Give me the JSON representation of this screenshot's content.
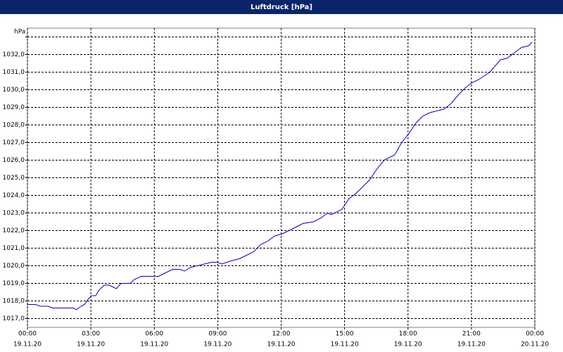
{
  "chart_data": {
    "type": "line",
    "title": "Luftdruck [hPa]",
    "y_label": "hPa",
    "color": "#0000cc",
    "grid": true,
    "x": [
      0,
      0.37,
      0.63,
      0.97,
      1.2,
      1.7,
      2.2,
      2.3,
      2.53,
      2.7,
      2.87,
      3.03,
      3.23,
      3.37,
      3.63,
      3.87,
      4.2,
      4.43,
      4.87,
      5.03,
      5.37,
      6.2,
      6.53,
      6.87,
      7.2,
      7.43,
      7.7,
      8.03,
      8.37,
      8.7,
      8.97,
      9.2,
      9.43,
      9.7,
      10.03,
      10.37,
      10.7,
      11.03,
      11.37,
      11.7,
      12.03,
      12.37,
      12.7,
      13.03,
      13.53,
      13.87,
      14.2,
      14.37,
      14.87,
      15.2,
      15.53,
      15.87,
      16.2,
      16.53,
      16.87,
      17.37,
      17.7,
      18.03,
      18.37,
      18.7,
      19.03,
      19.37,
      19.7,
      20.03,
      20.37,
      20.7,
      21.03,
      21.37,
      21.87,
      22.37,
      22.7,
      23.03,
      23.37,
      23.7,
      23.87
    ],
    "values": [
      1017.8,
      1017.8,
      1017.7,
      1017.7,
      1017.6,
      1017.6,
      1017.6,
      1017.5,
      1017.7,
      1017.8,
      1018.1,
      1018.3,
      1018.3,
      1018.6,
      1018.9,
      1018.9,
      1018.7,
      1019.0,
      1019.0,
      1019.2,
      1019.4,
      1019.4,
      1019.6,
      1019.8,
      1019.8,
      1019.7,
      1019.9,
      1020.0,
      1020.1,
      1020.2,
      1020.2,
      1020.1,
      1020.2,
      1020.3,
      1020.4,
      1020.6,
      1020.8,
      1021.2,
      1021.4,
      1021.7,
      1021.8,
      1022.0,
      1022.2,
      1022.4,
      1022.5,
      1022.7,
      1023.0,
      1022.9,
      1023.2,
      1023.8,
      1024.1,
      1024.5,
      1024.9,
      1025.5,
      1026.0,
      1026.3,
      1027.0,
      1027.5,
      1028.1,
      1028.5,
      1028.7,
      1028.8,
      1028.9,
      1029.2,
      1029.7,
      1030.1,
      1030.4,
      1030.6,
      1031.0,
      1031.7,
      1031.8,
      1032.1,
      1032.4,
      1032.5,
      1032.7
    ],
    "xlim": [
      0,
      24
    ],
    "xticks": [
      {
        "value": 0,
        "label": "00:00"
      },
      {
        "value": 3,
        "label": "03:00"
      },
      {
        "value": 6,
        "label": "06:00"
      },
      {
        "value": 9,
        "label": "09:00"
      },
      {
        "value": 12,
        "label": "12:00"
      },
      {
        "value": 15,
        "label": "15:00"
      },
      {
        "value": 18,
        "label": "18:00"
      },
      {
        "value": 21,
        "label": "21:00"
      },
      {
        "value": 24,
        "label": "00:00"
      }
    ],
    "xtick_dates": [
      "19.11.20",
      "19.11.20",
      "19.11.20",
      "19.11.20",
      "19.11.20",
      "19.11.20",
      "19.11.20",
      "19.11.20",
      "20.11.20"
    ],
    "ylim": [
      1016.5,
      1033.5
    ],
    "yticks": [
      {
        "value": 1017,
        "label": "1017,0"
      },
      {
        "value": 1018,
        "label": "1018,0"
      },
      {
        "value": 1019,
        "label": "1019,0"
      },
      {
        "value": 1020,
        "label": "1020,0"
      },
      {
        "value": 1021,
        "label": "1021,0"
      },
      {
        "value": 1022,
        "label": "1022,0"
      },
      {
        "value": 1023,
        "label": "1023,0"
      },
      {
        "value": 1024,
        "label": "1024,0"
      },
      {
        "value": 1025,
        "label": "1025,0"
      },
      {
        "value": 1026,
        "label": "1026,0"
      },
      {
        "value": 1027,
        "label": "1027,0"
      },
      {
        "value": 1028,
        "label": "1028,0"
      },
      {
        "value": 1029,
        "label": "1029,0"
      },
      {
        "value": 1030,
        "label": "1030,0"
      },
      {
        "value": 1031,
        "label": "1031,0"
      },
      {
        "value": 1032,
        "label": "1032,0"
      },
      {
        "value": 1033,
        "label": null
      }
    ]
  }
}
